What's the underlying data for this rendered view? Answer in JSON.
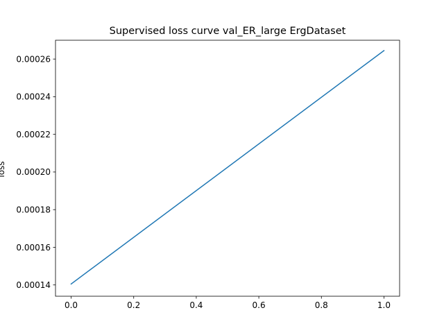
{
  "chart_data": {
    "type": "line",
    "title": "Supervised loss curve val_ER_large ErgDataset",
    "xlabel": "",
    "ylabel": "loss",
    "xlim": [
      -0.05,
      1.05
    ],
    "ylim": [
      0.000134,
      0.00027
    ],
    "x_ticks": [
      0.0,
      0.2,
      0.4,
      0.6,
      0.8,
      1.0
    ],
    "x_tick_labels": [
      "0.0",
      "0.2",
      "0.4",
      "0.6",
      "0.8",
      "1.0"
    ],
    "y_ticks": [
      0.00014,
      0.00016,
      0.00018,
      0.0002,
      0.00022,
      0.00024,
      0.00026
    ],
    "y_tick_labels": [
      "0.00014",
      "0.00016",
      "0.00018",
      "0.00020",
      "0.00022",
      "0.00024",
      "0.00026"
    ],
    "grid": false,
    "series": [
      {
        "color": "#1f77b4",
        "x": [
          0.0,
          1.0
        ],
        "y": [
          0.0001405,
          0.0002645
        ]
      }
    ]
  }
}
